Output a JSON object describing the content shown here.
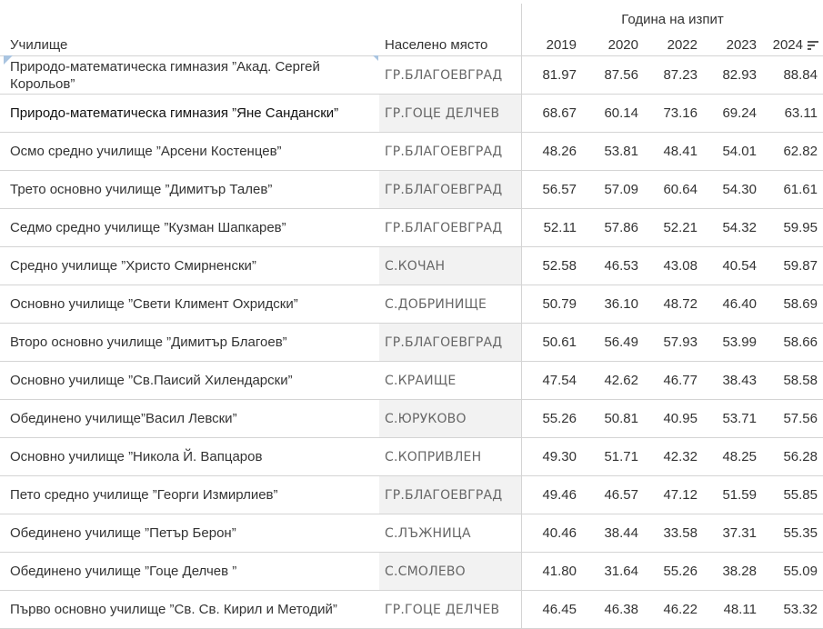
{
  "header": {
    "group_label": "Година на изпит",
    "school_col": "Училище",
    "place_col": "Населено място",
    "years": [
      "2019",
      "2020",
      "2022",
      "2023",
      "2024"
    ],
    "sort_icon": "sort-descending-icon"
  },
  "rows": [
    {
      "school": "Природо-математическа гимназия ”Акад. Сергей Корольов”",
      "place": "ГР.БЛАГОЕВГРАД",
      "values": [
        "81.97",
        "87.56",
        "87.23",
        "82.93",
        "88.84"
      ]
    },
    {
      "school": "Природо-математическа гимназия ”Яне Сандански”",
      "place": "ГР.ГОЦЕ ДЕЛЧЕВ",
      "values": [
        "68.67",
        "60.14",
        "73.16",
        "69.24",
        "63.11"
      ]
    },
    {
      "school": "Осмо средно училище ”Арсени Костенцев”",
      "place": "ГР.БЛАГОЕВГРАД",
      "values": [
        "48.26",
        "53.81",
        "48.41",
        "54.01",
        "62.82"
      ]
    },
    {
      "school": "Трето основно училище ”Димитър Талев”",
      "place": "ГР.БЛАГОЕВГРАД",
      "values": [
        "56.57",
        "57.09",
        "60.64",
        "54.30",
        "61.61"
      ]
    },
    {
      "school": "Седмо средно училище ”Кузман Шапкарев”",
      "place": "ГР.БЛАГОЕВГРАД",
      "values": [
        "52.11",
        "57.86",
        "52.21",
        "54.32",
        "59.95"
      ]
    },
    {
      "school": "Средно училище ”Христо Смирненски”",
      "place": "С.КОЧАН",
      "values": [
        "52.58",
        "46.53",
        "43.08",
        "40.54",
        "59.87"
      ]
    },
    {
      "school": "Основно училище ”Свети Климент Охридски”",
      "place": "С.ДОБРИНИЩЕ",
      "values": [
        "50.79",
        "36.10",
        "48.72",
        "46.40",
        "58.69"
      ]
    },
    {
      "school": "Второ основно училище ”Димитър Благоев”",
      "place": "ГР.БЛАГОЕВГРАД",
      "values": [
        "50.61",
        "56.49",
        "57.93",
        "53.99",
        "58.66"
      ]
    },
    {
      "school": "Основно училище ”Св.Паисий Хилендарски”",
      "place": "С.КРАИЩЕ",
      "values": [
        "47.54",
        "42.62",
        "46.77",
        "38.43",
        "58.58"
      ]
    },
    {
      "school": "Обединено училище”Васил Левски”",
      "place": "С.ЮРУКОВО",
      "values": [
        "55.26",
        "50.81",
        "40.95",
        "53.71",
        "57.56"
      ]
    },
    {
      "school": "Основно училище ”Никола Й. Вапцаров",
      "place": "С.КОПРИВЛЕН",
      "values": [
        "49.30",
        "51.71",
        "42.32",
        "48.25",
        "56.28"
      ]
    },
    {
      "school": "Пето средно училище ”Георги Измирлиев”",
      "place": "ГР.БЛАГОЕВГРАД",
      "values": [
        "49.46",
        "46.57",
        "47.12",
        "51.59",
        "55.85"
      ]
    },
    {
      "school": "Обединено училище ”Петър Берон”",
      "place": "С.ЛЪЖНИЦА",
      "values": [
        "40.46",
        "38.44",
        "33.58",
        "37.31",
        "55.35"
      ]
    },
    {
      "school": "Обединено училище ”Гоце Делчев ”",
      "place": "С.СМОЛЕВО",
      "values": [
        "41.80",
        "31.64",
        "55.26",
        "38.28",
        "55.09"
      ]
    },
    {
      "school": "Първо основно училище ”Св. Св. Кирил и Методий”",
      "place": "ГР.ГОЦЕ ДЕЛЧЕВ",
      "values": [
        "46.45",
        "46.38",
        "46.22",
        "48.11",
        "53.32"
      ]
    }
  ]
}
